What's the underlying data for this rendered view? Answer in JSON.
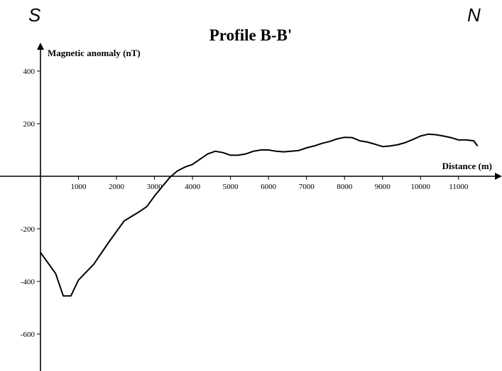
{
  "chart_data": {
    "type": "line",
    "title": "Profile B-B'",
    "xlabel": "Distance (m)",
    "ylabel": "Magnetic anomaly (nT)",
    "corner_left": "S",
    "corner_right": "N",
    "xlim": [
      0,
      11600
    ],
    "ylim": [
      -740,
      500
    ],
    "x_ticks": [
      1000,
      2000,
      3000,
      4000,
      5000,
      6000,
      7000,
      8000,
      9000,
      10000,
      11000
    ],
    "x_tick_labels": [
      "1000",
      "2000",
      "3000",
      "4000",
      "5000",
      "6000",
      "7000",
      "8000",
      "9000",
      "10000",
      "11000"
    ],
    "y_ticks": [
      400,
      200,
      -200,
      -400,
      -600
    ],
    "y_tick_labels": [
      "400",
      "200",
      "-200",
      "-400",
      "-600"
    ],
    "series": [
      {
        "x": [
          0,
          400,
          600,
          800,
          1000,
          1400,
          1800,
          2200,
          2600,
          2800,
          3000,
          3200,
          3400,
          3600,
          3800,
          4000,
          4200,
          4400,
          4600,
          4800,
          5000,
          5200,
          5400,
          5600,
          5800,
          6000,
          6200,
          6400,
          6600,
          6800,
          7000,
          7200,
          7400,
          7600,
          7800,
          8000,
          8200,
          8400,
          8600,
          8800,
          9000,
          9200,
          9400,
          9600,
          9800,
          10000,
          10200,
          10400,
          10600,
          10800,
          11000,
          11200,
          11400,
          11500
        ],
        "y": [
          -290,
          -370,
          -455,
          -455,
          -395,
          -335,
          -250,
          -170,
          -135,
          -115,
          -75,
          -40,
          -5,
          20,
          35,
          45,
          65,
          85,
          95,
          90,
          80,
          80,
          85,
          95,
          100,
          100,
          95,
          93,
          95,
          98,
          108,
          115,
          125,
          132,
          142,
          148,
          147,
          135,
          130,
          122,
          113,
          115,
          120,
          128,
          140,
          153,
          160,
          158,
          153,
          147,
          138,
          138,
          135,
          115
        ]
      }
    ]
  }
}
